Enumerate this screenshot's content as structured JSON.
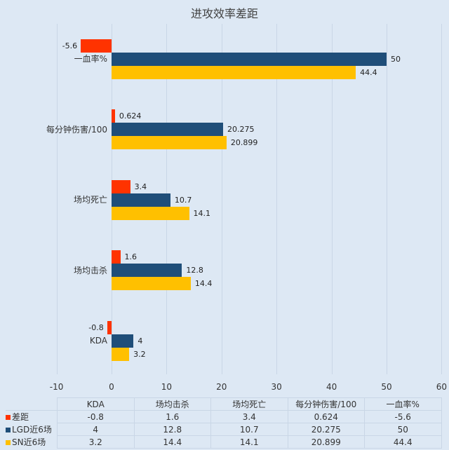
{
  "title": "进攻效率差距",
  "colors": {
    "diff": "#ff3300",
    "lgd": "#1f4e79",
    "sn": "#ffc000",
    "background": "#dde8f4"
  },
  "legend": [
    "差距",
    "LGD近6场",
    "SN近6场"
  ],
  "x_ticks": [
    "-10",
    "0",
    "10",
    "20",
    "30",
    "40",
    "50",
    "60"
  ],
  "categories": [
    "KDA",
    "场均击杀",
    "场均死亡",
    "每分钟伤害/100",
    "一血率%"
  ],
  "table": {
    "header": [
      "KDA",
      "场均击杀",
      "场均死亡",
      "每分钟伤害/100",
      "一血率%"
    ],
    "rows": [
      {
        "label": "差距",
        "values": [
          "-0.8",
          "1.6",
          "3.4",
          "0.624",
          "-5.6"
        ]
      },
      {
        "label": "LGD近6场",
        "values": [
          "4",
          "12.8",
          "10.7",
          "20.275",
          "50"
        ]
      },
      {
        "label": "SN近6场",
        "values": [
          "3.2",
          "14.4",
          "14.1",
          "20.899",
          "44.4"
        ]
      }
    ]
  },
  "chart_data": {
    "type": "bar",
    "orientation": "horizontal",
    "title": "进攻效率差距",
    "categories": [
      "KDA",
      "场均击杀",
      "场均死亡",
      "每分钟伤害/100",
      "一血率%"
    ],
    "series": [
      {
        "name": "差距",
        "values": [
          -0.8,
          1.6,
          3.4,
          0.624,
          -5.6
        ]
      },
      {
        "name": "LGD近6场",
        "values": [
          4,
          12.8,
          10.7,
          20.275,
          50
        ]
      },
      {
        "name": "SN近6场",
        "values": [
          3.2,
          14.4,
          14.1,
          20.899,
          44.4
        ]
      }
    ],
    "xlim": [
      -10,
      60
    ],
    "xticks": [
      -10,
      0,
      10,
      20,
      30,
      40,
      50,
      60
    ],
    "grid": true,
    "legend_position": "data-table",
    "xlabel": "",
    "ylabel": ""
  }
}
